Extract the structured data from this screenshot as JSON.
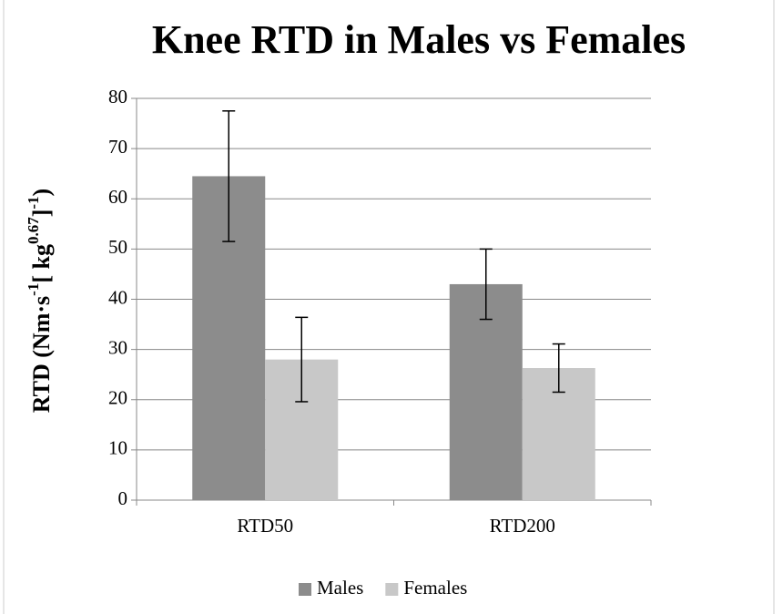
{
  "chart_data": {
    "type": "bar",
    "title": "Knee RTD in Males vs Females",
    "y_label": [
      "RTD (Nm·s",
      "-1",
      "[ kg",
      "0.67",
      "]",
      "-1",
      ")"
    ],
    "categories": [
      "RTD50",
      "RTD200"
    ],
    "series": [
      {
        "name": "Males",
        "color": "#8c8c8c",
        "values": [
          64.5,
          43
        ],
        "errors": [
          13,
          7
        ]
      },
      {
        "name": "Females",
        "color": "#c8c8c8",
        "values": [
          28,
          26.3
        ],
        "errors": [
          8.4,
          4.8
        ]
      }
    ],
    "ylim": [
      0,
      80
    ],
    "yticks": [
      0,
      10,
      20,
      30,
      40,
      50,
      60,
      70,
      80
    ],
    "grid": true,
    "legend": "bottom"
  }
}
